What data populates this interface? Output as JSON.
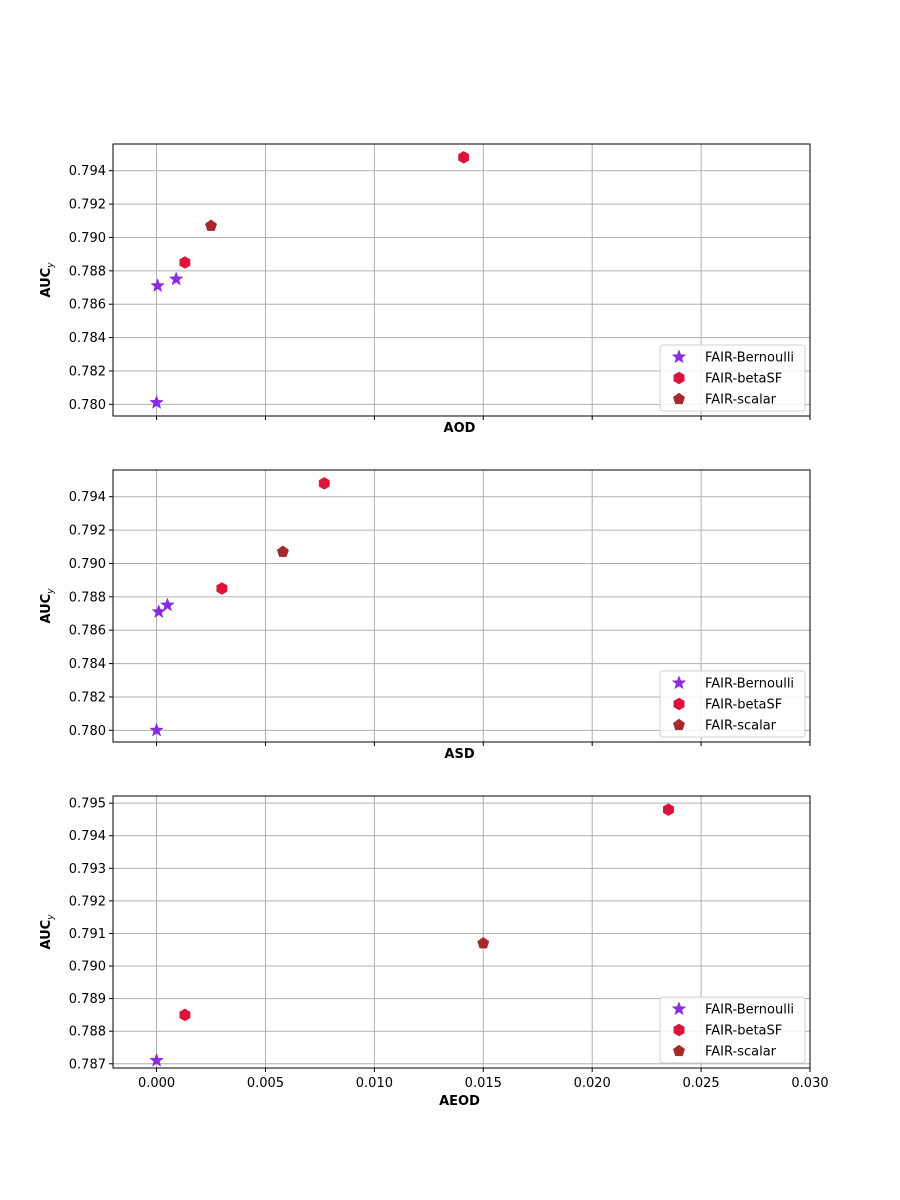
{
  "chart_data": [
    {
      "type": "scatter",
      "xlabel": "AOD",
      "ylabel": "AUC",
      "ylabel_sub": "y",
      "xlim": [
        -0.002,
        0.03
      ],
      "ylim": [
        0.7793,
        0.7956
      ],
      "x_ticks": [
        0.0,
        0.005,
        0.01,
        0.015,
        0.02,
        0.025,
        0.03
      ],
      "x_tick_labels": [],
      "y_ticks": [
        0.78,
        0.782,
        0.784,
        0.786,
        0.788,
        0.79,
        0.792,
        0.794
      ],
      "y_tick_labels": [
        "0.780",
        "0.782",
        "0.784",
        "0.786",
        "0.788",
        "0.790",
        "0.792",
        "0.794"
      ],
      "grid": true,
      "legend_position": "bottom-right",
      "series": [
        {
          "name": "FAIR-Bernoulli",
          "marker": "star",
          "color": "#8a2be2",
          "points": [
            [
              0.0,
              0.7801
            ],
            [
              5e-05,
              0.7871
            ],
            [
              0.0009,
              0.7875
            ]
          ]
        },
        {
          "name": "FAIR-betaSF",
          "marker": "hexagon",
          "color": "#dc143c",
          "points": [
            [
              0.0013,
              0.7885
            ],
            [
              0.0141,
              0.7948
            ]
          ]
        },
        {
          "name": "FAIR-scalar",
          "marker": "pentagon",
          "color": "#a52a2a",
          "points": [
            [
              0.0025,
              0.7907
            ]
          ]
        }
      ]
    },
    {
      "type": "scatter",
      "xlabel": "ASD",
      "ylabel": "AUC",
      "ylabel_sub": "y",
      "xlim": [
        -0.002,
        0.03
      ],
      "ylim": [
        0.7793,
        0.7956
      ],
      "x_ticks": [
        0.0,
        0.005,
        0.01,
        0.015,
        0.02,
        0.025,
        0.03
      ],
      "x_tick_labels": [],
      "y_ticks": [
        0.78,
        0.782,
        0.784,
        0.786,
        0.788,
        0.79,
        0.792,
        0.794
      ],
      "y_tick_labels": [
        "0.780",
        "0.782",
        "0.784",
        "0.786",
        "0.788",
        "0.790",
        "0.792",
        "0.794"
      ],
      "grid": true,
      "legend_position": "bottom-right",
      "series": [
        {
          "name": "FAIR-Bernoulli",
          "marker": "star",
          "color": "#8a2be2",
          "points": [
            [
              0.0,
              0.78
            ],
            [
              0.0001,
              0.7871
            ],
            [
              0.0005,
              0.7875
            ]
          ]
        },
        {
          "name": "FAIR-betaSF",
          "marker": "hexagon",
          "color": "#dc143c",
          "points": [
            [
              0.003,
              0.7885
            ],
            [
              0.0077,
              0.7948
            ]
          ]
        },
        {
          "name": "FAIR-scalar",
          "marker": "pentagon",
          "color": "#a52a2a",
          "points": [
            [
              0.0058,
              0.7907
            ]
          ]
        }
      ]
    },
    {
      "type": "scatter",
      "xlabel": "AEOD",
      "ylabel": "AUC",
      "ylabel_sub": "y",
      "xlim": [
        -0.002,
        0.03
      ],
      "ylim": [
        0.78687,
        0.79522
      ],
      "x_ticks": [
        0.0,
        0.005,
        0.01,
        0.015,
        0.02,
        0.025,
        0.03
      ],
      "x_tick_labels": [
        "0.000",
        "0.005",
        "0.010",
        "0.015",
        "0.020",
        "0.025",
        "0.030"
      ],
      "y_ticks": [
        0.787,
        0.788,
        0.789,
        0.79,
        0.791,
        0.792,
        0.793,
        0.794,
        0.795
      ],
      "y_tick_labels": [
        "0.787",
        "0.788",
        "0.789",
        "0.790",
        "0.791",
        "0.792",
        "0.793",
        "0.794",
        "0.795"
      ],
      "grid": true,
      "legend_position": "bottom-right",
      "series": [
        {
          "name": "FAIR-Bernoulli",
          "marker": "star",
          "color": "#8a2be2",
          "points": [
            [
              0.0,
              0.7871
            ]
          ]
        },
        {
          "name": "FAIR-betaSF",
          "marker": "hexagon",
          "color": "#dc143c",
          "points": [
            [
              0.0013,
              0.7885
            ],
            [
              0.0235,
              0.7948
            ]
          ]
        },
        {
          "name": "FAIR-scalar",
          "marker": "pentagon",
          "color": "#a52a2a",
          "points": [
            [
              0.015,
              0.7907
            ]
          ]
        }
      ]
    }
  ]
}
